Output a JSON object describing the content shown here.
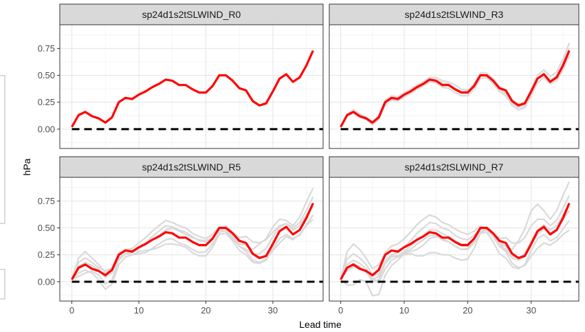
{
  "chart_data": {
    "type": "line",
    "layout": "facet-grid-2x2",
    "xlabel": "Lead time",
    "ylabel": "hPa",
    "xlim": [
      -1.8,
      37.5
    ],
    "ylim": [
      -0.18,
      0.97
    ],
    "x_ticks": [
      0,
      10,
      20,
      30
    ],
    "y_ticks": [
      0.0,
      0.25,
      0.5,
      0.75
    ],
    "y_tick_labels": [
      "0.00",
      "0.25",
      "0.50",
      "0.75"
    ],
    "x": [
      0,
      1,
      2,
      3,
      4,
      5,
      6,
      7,
      8,
      9,
      10,
      11,
      12,
      13,
      14,
      15,
      16,
      17,
      18,
      19,
      20,
      21,
      22,
      23,
      24,
      25,
      26,
      27,
      28,
      29,
      30,
      31,
      32,
      33,
      34,
      35,
      36
    ],
    "grid": true,
    "reference_line": {
      "y": 0,
      "style": "dashed",
      "color": "#000000"
    },
    "highlight_color": "#ff0000",
    "member_color": "#d9d9d9",
    "strip_color": "#d9d9d9",
    "highlight_values": [
      0.02,
      0.13,
      0.16,
      0.12,
      0.1,
      0.06,
      0.11,
      0.25,
      0.29,
      0.28,
      0.32,
      0.35,
      0.39,
      0.42,
      0.46,
      0.45,
      0.41,
      0.41,
      0.37,
      0.34,
      0.34,
      0.4,
      0.5,
      0.5,
      0.45,
      0.38,
      0.36,
      0.26,
      0.22,
      0.24,
      0.35,
      0.47,
      0.51,
      0.44,
      0.48,
      0.59,
      0.73
    ],
    "panels": [
      {
        "title": "sp24d1s2tSLWIND_R0",
        "members": []
      },
      {
        "title": "sp24d1s2tSLWIND_R3",
        "members": [
          [
            0.02,
            0.14,
            0.18,
            0.14,
            0.11,
            0.07,
            0.12,
            0.27,
            0.31,
            0.3,
            0.34,
            0.37,
            0.41,
            0.44,
            0.48,
            0.48,
            0.45,
            0.44,
            0.41,
            0.37,
            0.36,
            0.42,
            0.52,
            0.52,
            0.47,
            0.4,
            0.36,
            0.27,
            0.23,
            0.25,
            0.37,
            0.5,
            0.55,
            0.49,
            0.53,
            0.65,
            0.8
          ],
          [
            0.02,
            0.12,
            0.15,
            0.11,
            0.09,
            0.04,
            0.09,
            0.23,
            0.27,
            0.26,
            0.3,
            0.33,
            0.37,
            0.4,
            0.44,
            0.43,
            0.39,
            0.38,
            0.34,
            0.31,
            0.31,
            0.37,
            0.47,
            0.48,
            0.42,
            0.35,
            0.31,
            0.22,
            0.18,
            0.2,
            0.31,
            0.43,
            0.48,
            0.42,
            0.45,
            0.55,
            0.68
          ],
          [
            0.02,
            0.13,
            0.17,
            0.13,
            0.1,
            0.05,
            0.11,
            0.26,
            0.3,
            0.29,
            0.33,
            0.36,
            0.4,
            0.43,
            0.47,
            0.46,
            0.43,
            0.42,
            0.38,
            0.35,
            0.35,
            0.41,
            0.51,
            0.5,
            0.44,
            0.37,
            0.33,
            0.24,
            0.2,
            0.22,
            0.34,
            0.47,
            0.52,
            0.45,
            0.5,
            0.61,
            0.75
          ]
        ]
      },
      {
        "title": "sp24d1s2tSLWIND_R5",
        "members": [
          [
            0.02,
            0.22,
            0.28,
            0.22,
            0.16,
            0.08,
            0.12,
            0.24,
            0.3,
            0.31,
            0.36,
            0.41,
            0.47,
            0.52,
            0.57,
            0.55,
            0.52,
            0.5,
            0.45,
            0.42,
            0.4,
            0.44,
            0.51,
            0.49,
            0.42,
            0.35,
            0.34,
            0.3,
            0.35,
            0.4,
            0.51,
            0.58,
            0.57,
            0.52,
            0.6,
            0.74,
            0.87
          ],
          [
            0.02,
            0.18,
            0.22,
            0.18,
            0.13,
            0.1,
            0.13,
            0.27,
            0.3,
            0.29,
            0.31,
            0.35,
            0.39,
            0.43,
            0.48,
            0.5,
            0.47,
            0.44,
            0.41,
            0.39,
            0.38,
            0.41,
            0.48,
            0.47,
            0.4,
            0.33,
            0.3,
            0.25,
            0.26,
            0.31,
            0.42,
            0.51,
            0.54,
            0.5,
            0.55,
            0.66,
            0.79
          ],
          [
            0.02,
            0.08,
            0.11,
            0.08,
            0.02,
            -0.07,
            -0.02,
            0.16,
            0.23,
            0.25,
            0.28,
            0.29,
            0.3,
            0.32,
            0.35,
            0.35,
            0.34,
            0.32,
            0.27,
            0.24,
            0.24,
            0.32,
            0.44,
            0.45,
            0.38,
            0.29,
            0.25,
            0.18,
            0.17,
            0.2,
            0.31,
            0.4,
            0.44,
            0.4,
            0.43,
            0.53,
            0.62
          ],
          [
            0.02,
            0.05,
            0.08,
            0.1,
            0.06,
            -0.02,
            0.02,
            0.2,
            0.26,
            0.25,
            0.26,
            0.27,
            0.31,
            0.35,
            0.39,
            0.4,
            0.36,
            0.34,
            0.3,
            0.27,
            0.28,
            0.35,
            0.46,
            0.47,
            0.41,
            0.33,
            0.28,
            0.2,
            0.18,
            0.21,
            0.29,
            0.36,
            0.42,
            0.39,
            0.44,
            0.52,
            0.58
          ],
          [
            0.02,
            0.14,
            0.18,
            0.15,
            0.11,
            0.04,
            0.08,
            0.22,
            0.26,
            0.27,
            0.31,
            0.36,
            0.42,
            0.47,
            0.52,
            0.51,
            0.48,
            0.46,
            0.42,
            0.38,
            0.37,
            0.41,
            0.5,
            0.52,
            0.46,
            0.41,
            0.42,
            0.37,
            0.36,
            0.39,
            0.46,
            0.52,
            0.54,
            0.48,
            0.52,
            0.62,
            0.7
          ]
        ]
      },
      {
        "title": "sp24d1s2tSLWIND_R7",
        "members": [
          [
            0.02,
            0.28,
            0.35,
            0.3,
            0.22,
            0.12,
            0.16,
            0.27,
            0.33,
            0.35,
            0.4,
            0.46,
            0.53,
            0.58,
            0.62,
            0.6,
            0.55,
            0.53,
            0.49,
            0.46,
            0.44,
            0.47,
            0.52,
            0.49,
            0.42,
            0.34,
            0.33,
            0.3,
            0.38,
            0.49,
            0.66,
            0.72,
            0.66,
            0.58,
            0.66,
            0.8,
            0.93
          ],
          [
            0.02,
            0.16,
            0.2,
            0.17,
            0.12,
            0.03,
            -0.01,
            0.12,
            0.2,
            0.23,
            0.25,
            0.26,
            0.24,
            0.24,
            0.27,
            0.27,
            0.25,
            0.25,
            0.22,
            0.2,
            0.21,
            0.31,
            0.45,
            0.46,
            0.37,
            0.26,
            0.22,
            0.14,
            0.12,
            0.16,
            0.29,
            0.4,
            0.44,
            0.38,
            0.41,
            0.49,
            0.57
          ],
          [
            0.02,
            -0.03,
            -0.03,
            0.02,
            0.0,
            -0.13,
            -0.12,
            0.06,
            0.15,
            0.2,
            0.26,
            0.28,
            0.3,
            0.34,
            0.4,
            0.42,
            0.4,
            0.37,
            0.33,
            0.3,
            0.31,
            0.38,
            0.47,
            0.48,
            0.42,
            0.33,
            0.28,
            0.17,
            0.13,
            0.15,
            0.24,
            0.31,
            0.36,
            0.34,
            0.38,
            0.44,
            0.48
          ],
          [
            0.02,
            0.21,
            0.26,
            0.22,
            0.16,
            0.06,
            0.07,
            0.19,
            0.25,
            0.27,
            0.32,
            0.38,
            0.45,
            0.5,
            0.55,
            0.54,
            0.5,
            0.48,
            0.43,
            0.4,
            0.39,
            0.43,
            0.49,
            0.5,
            0.45,
            0.4,
            0.41,
            0.36,
            0.36,
            0.41,
            0.52,
            0.58,
            0.58,
            0.52,
            0.57,
            0.68,
            0.8
          ],
          [
            0.02,
            0.1,
            0.14,
            0.13,
            0.09,
            0.02,
            0.05,
            0.19,
            0.24,
            0.24,
            0.27,
            0.3,
            0.35,
            0.39,
            0.43,
            0.43,
            0.39,
            0.37,
            0.33,
            0.3,
            0.3,
            0.36,
            0.46,
            0.48,
            0.42,
            0.34,
            0.3,
            0.22,
            0.2,
            0.24,
            0.35,
            0.44,
            0.49,
            0.45,
            0.49,
            0.58,
            0.66
          ],
          [
            0.02,
            0.12,
            0.17,
            0.14,
            0.09,
            0.0,
            0.02,
            0.17,
            0.23,
            0.24,
            0.28,
            0.33,
            0.38,
            0.43,
            0.48,
            0.48,
            0.45,
            0.42,
            0.38,
            0.35,
            0.35,
            0.4,
            0.49,
            0.51,
            0.45,
            0.36,
            0.33,
            0.24,
            0.22,
            0.26,
            0.38,
            0.48,
            0.53,
            0.48,
            0.52,
            0.62,
            0.72
          ]
        ]
      }
    ]
  }
}
